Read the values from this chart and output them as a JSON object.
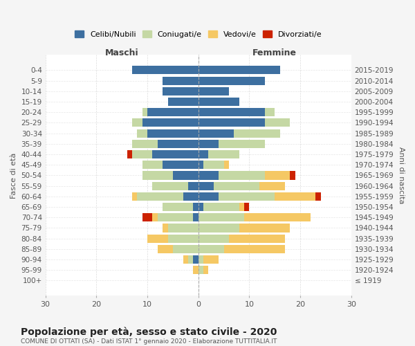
{
  "age_groups": [
    "100+",
    "95-99",
    "90-94",
    "85-89",
    "80-84",
    "75-79",
    "70-74",
    "65-69",
    "60-64",
    "55-59",
    "50-54",
    "45-49",
    "40-44",
    "35-39",
    "30-34",
    "25-29",
    "20-24",
    "15-19",
    "10-14",
    "5-9",
    "0-4"
  ],
  "birth_years": [
    "≤ 1919",
    "1920-1924",
    "1925-1929",
    "1930-1934",
    "1935-1939",
    "1940-1944",
    "1945-1949",
    "1950-1954",
    "1955-1959",
    "1960-1964",
    "1965-1969",
    "1970-1974",
    "1975-1979",
    "1980-1984",
    "1985-1989",
    "1990-1994",
    "1995-1999",
    "2000-2004",
    "2005-2009",
    "2010-2014",
    "2015-2019"
  ],
  "colors": {
    "celibi": "#3d6fa0",
    "coniugati": "#c5d8a4",
    "vedovi": "#f5c864",
    "divorziati": "#cc2200"
  },
  "maschi": {
    "celibi": [
      0,
      0,
      1,
      0,
      0,
      0,
      1,
      1,
      3,
      2,
      5,
      7,
      9,
      8,
      10,
      11,
      10,
      6,
      7,
      7,
      13
    ],
    "coniugati": [
      0,
      0,
      1,
      5,
      6,
      6,
      7,
      6,
      9,
      7,
      6,
      4,
      4,
      5,
      2,
      2,
      1,
      0,
      0,
      0,
      0
    ],
    "vedovi": [
      0,
      1,
      1,
      3,
      4,
      1,
      1,
      0,
      1,
      0,
      0,
      0,
      0,
      0,
      0,
      0,
      0,
      0,
      0,
      0,
      0
    ],
    "divorziati": [
      0,
      0,
      0,
      0,
      0,
      0,
      2,
      0,
      0,
      0,
      0,
      0,
      1,
      0,
      0,
      0,
      0,
      0,
      0,
      0,
      0
    ]
  },
  "femmine": {
    "celibi": [
      0,
      0,
      0,
      0,
      0,
      0,
      0,
      1,
      4,
      3,
      4,
      1,
      2,
      4,
      7,
      13,
      13,
      8,
      6,
      13,
      16
    ],
    "coniugati": [
      0,
      1,
      1,
      5,
      6,
      8,
      9,
      7,
      11,
      9,
      9,
      4,
      6,
      9,
      9,
      5,
      2,
      0,
      0,
      0,
      0
    ],
    "vedovi": [
      0,
      1,
      3,
      12,
      11,
      10,
      13,
      1,
      8,
      5,
      5,
      1,
      0,
      0,
      0,
      0,
      0,
      0,
      0,
      0,
      0
    ],
    "divorziati": [
      0,
      0,
      0,
      0,
      0,
      0,
      0,
      1,
      1,
      0,
      1,
      0,
      0,
      0,
      0,
      0,
      0,
      0,
      0,
      0,
      0
    ]
  },
  "title": "Popolazione per età, sesso e stato civile - 2020",
  "subtitle": "COMUNE DI OTTATI (SA) - Dati ISTAT 1° gennaio 2020 - Elaborazione TUTTITALIA.IT",
  "xlabel_left": "Maschi",
  "xlabel_right": "Femmine",
  "ylabel_left": "Fasce di età",
  "ylabel_right": "Anni di nascita",
  "xlim": 30,
  "legend_labels": [
    "Celibi/Nubili",
    "Coniugati/e",
    "Vedovi/e",
    "Divorziati/e"
  ],
  "bg_color": "#f5f5f5",
  "plot_bg": "#ffffff"
}
